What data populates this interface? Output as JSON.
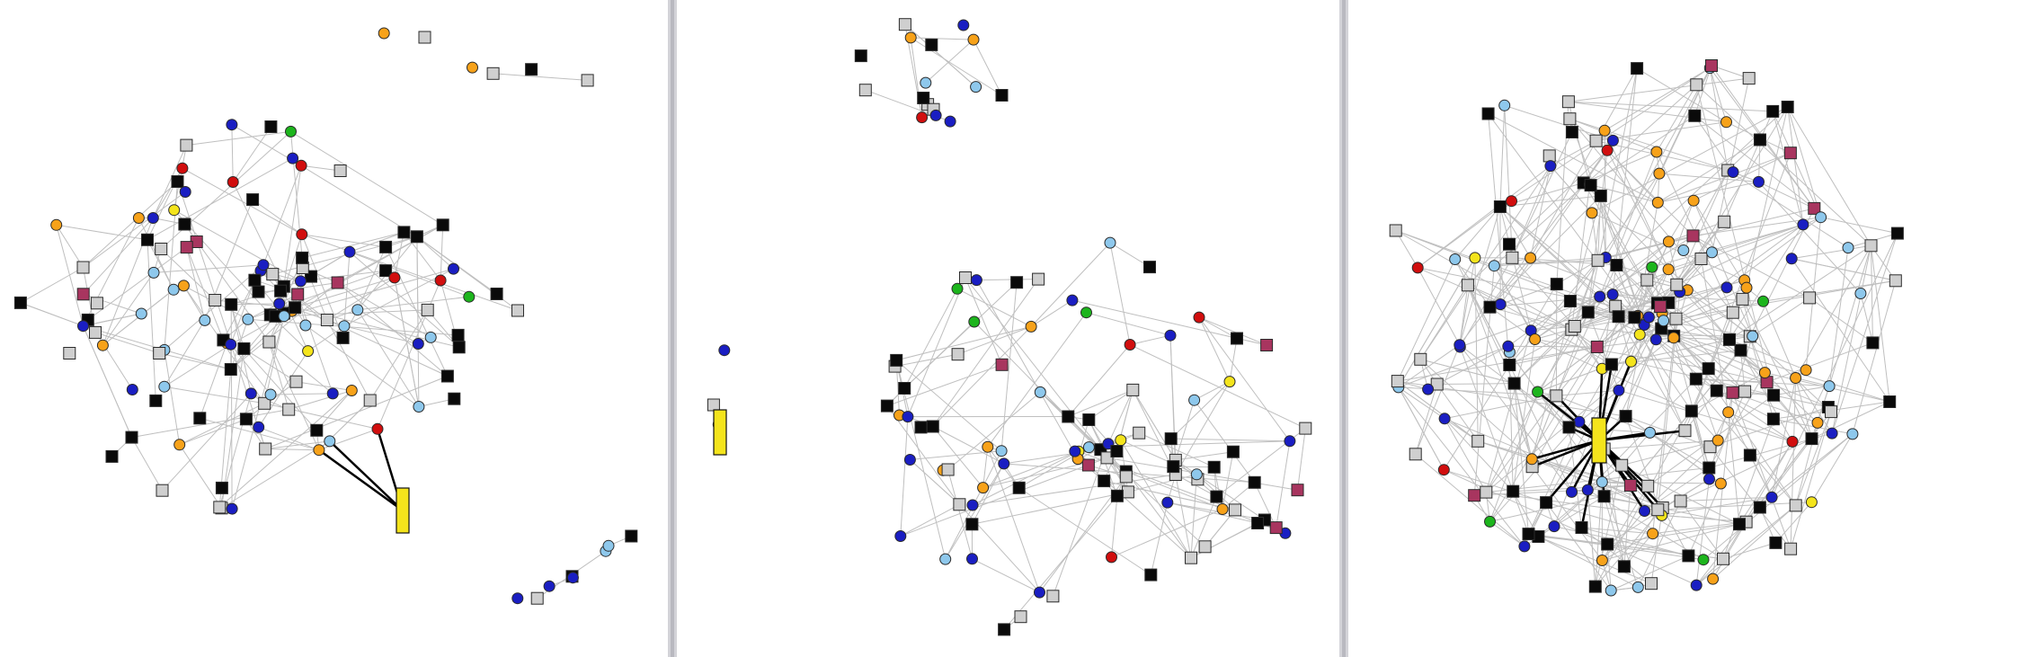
{
  "panels": [
    {
      "id": "left",
      "seed": 11,
      "nodes": 150,
      "edges": 240,
      "clusters": [
        {
          "nodes": 6,
          "shape": "chain"
        },
        {
          "nodes": 8,
          "shape": "chain"
        },
        {
          "nodes": 120,
          "shape": "hub"
        }
      ]
    },
    {
      "id": "middle",
      "seed": 23,
      "nodes": 110,
      "edges": 200,
      "clusters": [
        {
          "nodes": 16,
          "shape": "dense"
        },
        {
          "nodes": 3,
          "shape": "chain"
        },
        {
          "nodes": 90,
          "shape": "hub"
        }
      ]
    },
    {
      "id": "right",
      "seed": 37,
      "nodes": 210,
      "edges": 620,
      "clusters": [
        {
          "nodes": 210,
          "shape": "hub"
        }
      ]
    }
  ],
  "colors": {
    "background": "#ffffff",
    "divider": "#c9c9ce",
    "edge": "#bfbfbf",
    "highlight_edge": "#000000",
    "node_black": "#0a0a0a",
    "node_gray": "#cfcfcf",
    "node_maroon": "#a8355f",
    "node_lightblue": "#8ec8ec",
    "node_orange": "#f7a21a",
    "node_blue": "#1a1ec2",
    "node_red": "#d10e0e",
    "node_green": "#1db51d",
    "node_yellow": "#f4e41c",
    "node_stroke": "#2b2b2b"
  },
  "node_types": [
    {
      "name": "black-square",
      "shape": "square",
      "color": "node_black",
      "weight": 30
    },
    {
      "name": "gray-square",
      "shape": "square",
      "color": "node_gray",
      "weight": 26
    },
    {
      "name": "maroon-square",
      "shape": "square",
      "color": "node_maroon",
      "weight": 6
    },
    {
      "name": "lightblue-dot",
      "shape": "circle",
      "color": "node_lightblue",
      "weight": 10
    },
    {
      "name": "orange-dot",
      "shape": "circle",
      "color": "node_orange",
      "weight": 9
    },
    {
      "name": "blue-dot",
      "shape": "circle",
      "color": "node_blue",
      "weight": 14
    },
    {
      "name": "red-dot",
      "shape": "circle",
      "color": "node_red",
      "weight": 3
    },
    {
      "name": "green-dot",
      "shape": "circle",
      "color": "node_green",
      "weight": 2
    },
    {
      "name": "yellow-dot",
      "shape": "circle",
      "color": "node_yellow",
      "weight": 3
    }
  ],
  "highlight": {
    "left": {
      "spokes": 3
    },
    "middle": {
      "spokes": 1
    },
    "right": {
      "spokes": 26
    }
  }
}
